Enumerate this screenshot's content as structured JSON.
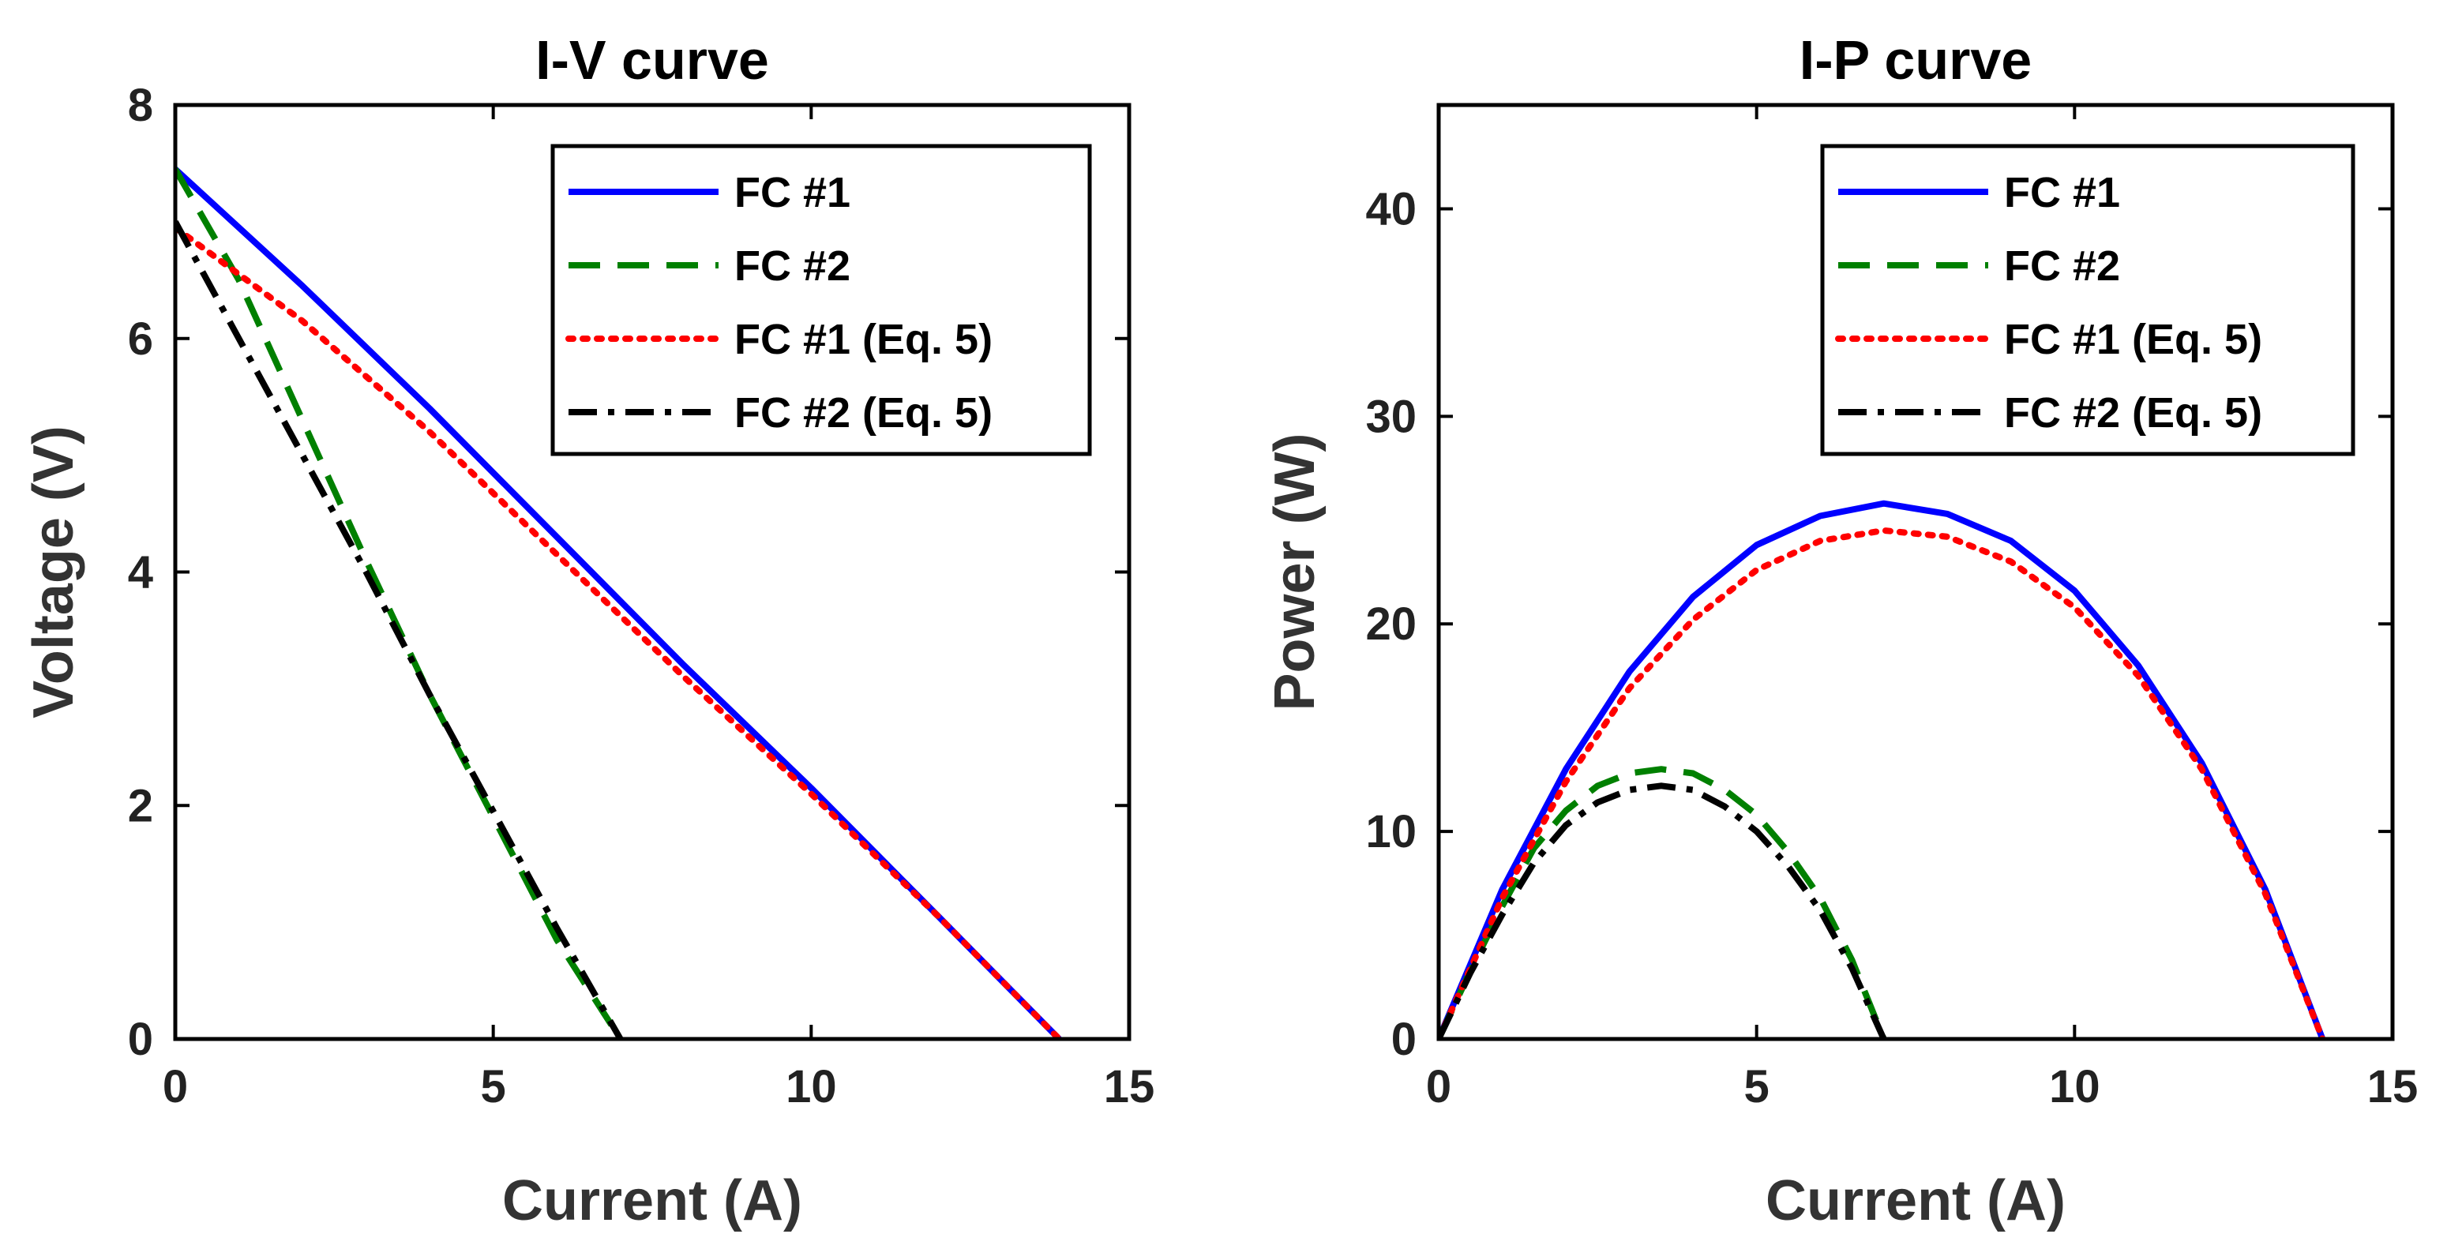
{
  "chart_data": [
    {
      "type": "line",
      "title": "I-V curve",
      "xlabel": "Current (A)",
      "ylabel": "Voltage (V)",
      "xlim": [
        0,
        15
      ],
      "ylim": [
        0,
        8
      ],
      "xticks": [
        0,
        5,
        10,
        15
      ],
      "yticks": [
        0,
        2,
        4,
        6,
        8
      ],
      "grid": false,
      "legend_position": "top-right",
      "series": [
        {
          "name": "FC #1",
          "color": "#0000ff",
          "style": "solid",
          "x": [
            0,
            2,
            4,
            6,
            8,
            10,
            12,
            13.9
          ],
          "y": [
            7.45,
            6.45,
            5.4,
            4.3,
            3.2,
            2.15,
            1.05,
            0.0
          ]
        },
        {
          "name": "FC #2",
          "color": "#008000",
          "style": "dashed",
          "x": [
            0,
            1,
            2,
            3,
            4,
            5,
            6,
            7
          ],
          "y": [
            7.45,
            6.5,
            5.3,
            4.1,
            2.95,
            1.9,
            0.85,
            0.0
          ]
        },
        {
          "name": "FC #1 (Eq. 5)",
          "color": "#ff0000",
          "style": "dotted",
          "x": [
            0,
            2,
            4,
            6,
            8,
            10,
            12,
            13.9
          ],
          "y": [
            6.95,
            6.15,
            5.2,
            4.15,
            3.1,
            2.1,
            1.05,
            0.0
          ]
        },
        {
          "name": "FC #2 (Eq. 5)",
          "color": "#000000",
          "style": "dashdot",
          "x": [
            0,
            1,
            2,
            3,
            4,
            5,
            6,
            7
          ],
          "y": [
            7.0,
            6.0,
            5.0,
            4.0,
            2.95,
            1.95,
            0.95,
            0.0
          ]
        }
      ]
    },
    {
      "type": "line",
      "title": "I-P curve",
      "xlabel": "Current (A)",
      "ylabel": "Power (W)",
      "xlim": [
        0,
        15
      ],
      "ylim": [
        0,
        45
      ],
      "xticks": [
        0,
        5,
        10,
        15
      ],
      "yticks": [
        0,
        10,
        20,
        30,
        40
      ],
      "grid": false,
      "legend_position": "top-right",
      "series": [
        {
          "name": "FC #1",
          "color": "#0000ff",
          "style": "solid",
          "x": [
            0,
            1,
            2,
            3,
            4,
            5,
            6,
            7,
            8,
            9,
            10,
            11,
            12,
            13,
            13.9
          ],
          "y": [
            0,
            7.2,
            13.0,
            17.7,
            21.3,
            23.8,
            25.2,
            25.8,
            25.3,
            24.0,
            21.6,
            18.0,
            13.3,
            7.2,
            0
          ]
        },
        {
          "name": "FC #2",
          "color": "#008000",
          "style": "dashed",
          "x": [
            0,
            0.5,
            1,
            1.5,
            2,
            2.5,
            3,
            3.5,
            4,
            4.5,
            5,
            5.5,
            6,
            6.5,
            7
          ],
          "y": [
            0,
            3.3,
            6.4,
            9.2,
            11.0,
            12.2,
            12.8,
            13.0,
            12.8,
            12.0,
            10.8,
            9.0,
            6.8,
            3.8,
            0
          ]
        },
        {
          "name": "FC #1 (Eq. 5)",
          "color": "#ff0000",
          "style": "dotted",
          "x": [
            0,
            1,
            2,
            3,
            4,
            5,
            6,
            7,
            8,
            9,
            10,
            11,
            12,
            13,
            13.9
          ],
          "y": [
            0,
            6.8,
            12.4,
            16.9,
            20.2,
            22.6,
            24.0,
            24.5,
            24.2,
            23.0,
            20.8,
            17.5,
            13.0,
            7.0,
            0
          ]
        },
        {
          "name": "FC #2 (Eq. 5)",
          "color": "#000000",
          "style": "dashdot",
          "x": [
            0,
            0.5,
            1,
            1.5,
            2,
            2.5,
            3,
            3.5,
            4,
            4.5,
            5,
            5.5,
            6,
            6.5,
            7
          ],
          "y": [
            0,
            3.2,
            6.0,
            8.5,
            10.3,
            11.4,
            12.0,
            12.2,
            12.0,
            11.2,
            10.0,
            8.3,
            6.2,
            3.4,
            0
          ]
        }
      ]
    }
  ]
}
